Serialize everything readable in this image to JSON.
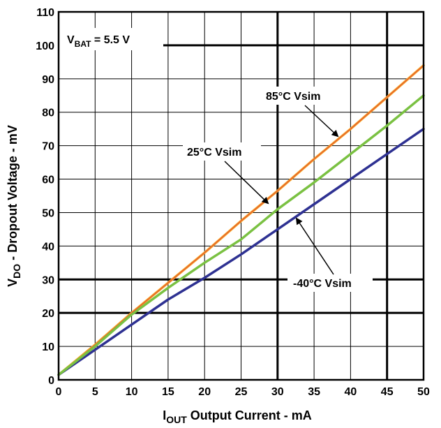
{
  "chart_data": {
    "type": "line",
    "title": "",
    "xlabel": {
      "main": "I",
      "sub": "OUT",
      "rest": " Output Current - mA"
    },
    "ylabel": {
      "main": "V",
      "sub": "DO",
      "rest": " - Dropout Voltage - mV"
    },
    "xlim": [
      0,
      50
    ],
    "ylim": [
      0,
      110
    ],
    "xticks": [
      "0",
      "5",
      "10",
      "15",
      "20",
      "25",
      "30",
      "35",
      "40",
      "45",
      "50"
    ],
    "yticks": [
      "0",
      "10",
      "20",
      "30",
      "40",
      "50",
      "60",
      "70",
      "80",
      "90",
      "100",
      "110"
    ],
    "grid": true,
    "condition": {
      "main": "V",
      "sub": "BAT",
      "rest": " = 5.5 V"
    },
    "x": [
      0,
      5,
      10,
      15,
      20,
      25,
      30,
      35,
      40,
      45,
      50
    ],
    "series": [
      {
        "name": "85°C Vsim",
        "color": "#f5a623",
        "values": [
          1.5,
          10.5,
          20,
          29,
          38,
          47.5,
          56.5,
          66,
          75,
          84.5,
          94
        ]
      },
      {
        "name": "-40°C Vsim",
        "color": "#2e3192",
        "values": [
          1.5,
          9,
          16.5,
          24,
          30.5,
          37.5,
          45,
          52.5,
          60,
          67.5,
          75
        ]
      },
      {
        "name": "25°C Vsim",
        "color": "#7ac142",
        "values": [
          1.5,
          10,
          19.5,
          27.5,
          35,
          42,
          51,
          59,
          67.5,
          76,
          85
        ]
      }
    ],
    "annotations": [
      {
        "text": "85°C Vsim",
        "series": 0
      },
      {
        "text": "25°C Vsim",
        "series": 2
      },
      {
        "text": "-40°C Vsim",
        "series": 1
      }
    ]
  }
}
